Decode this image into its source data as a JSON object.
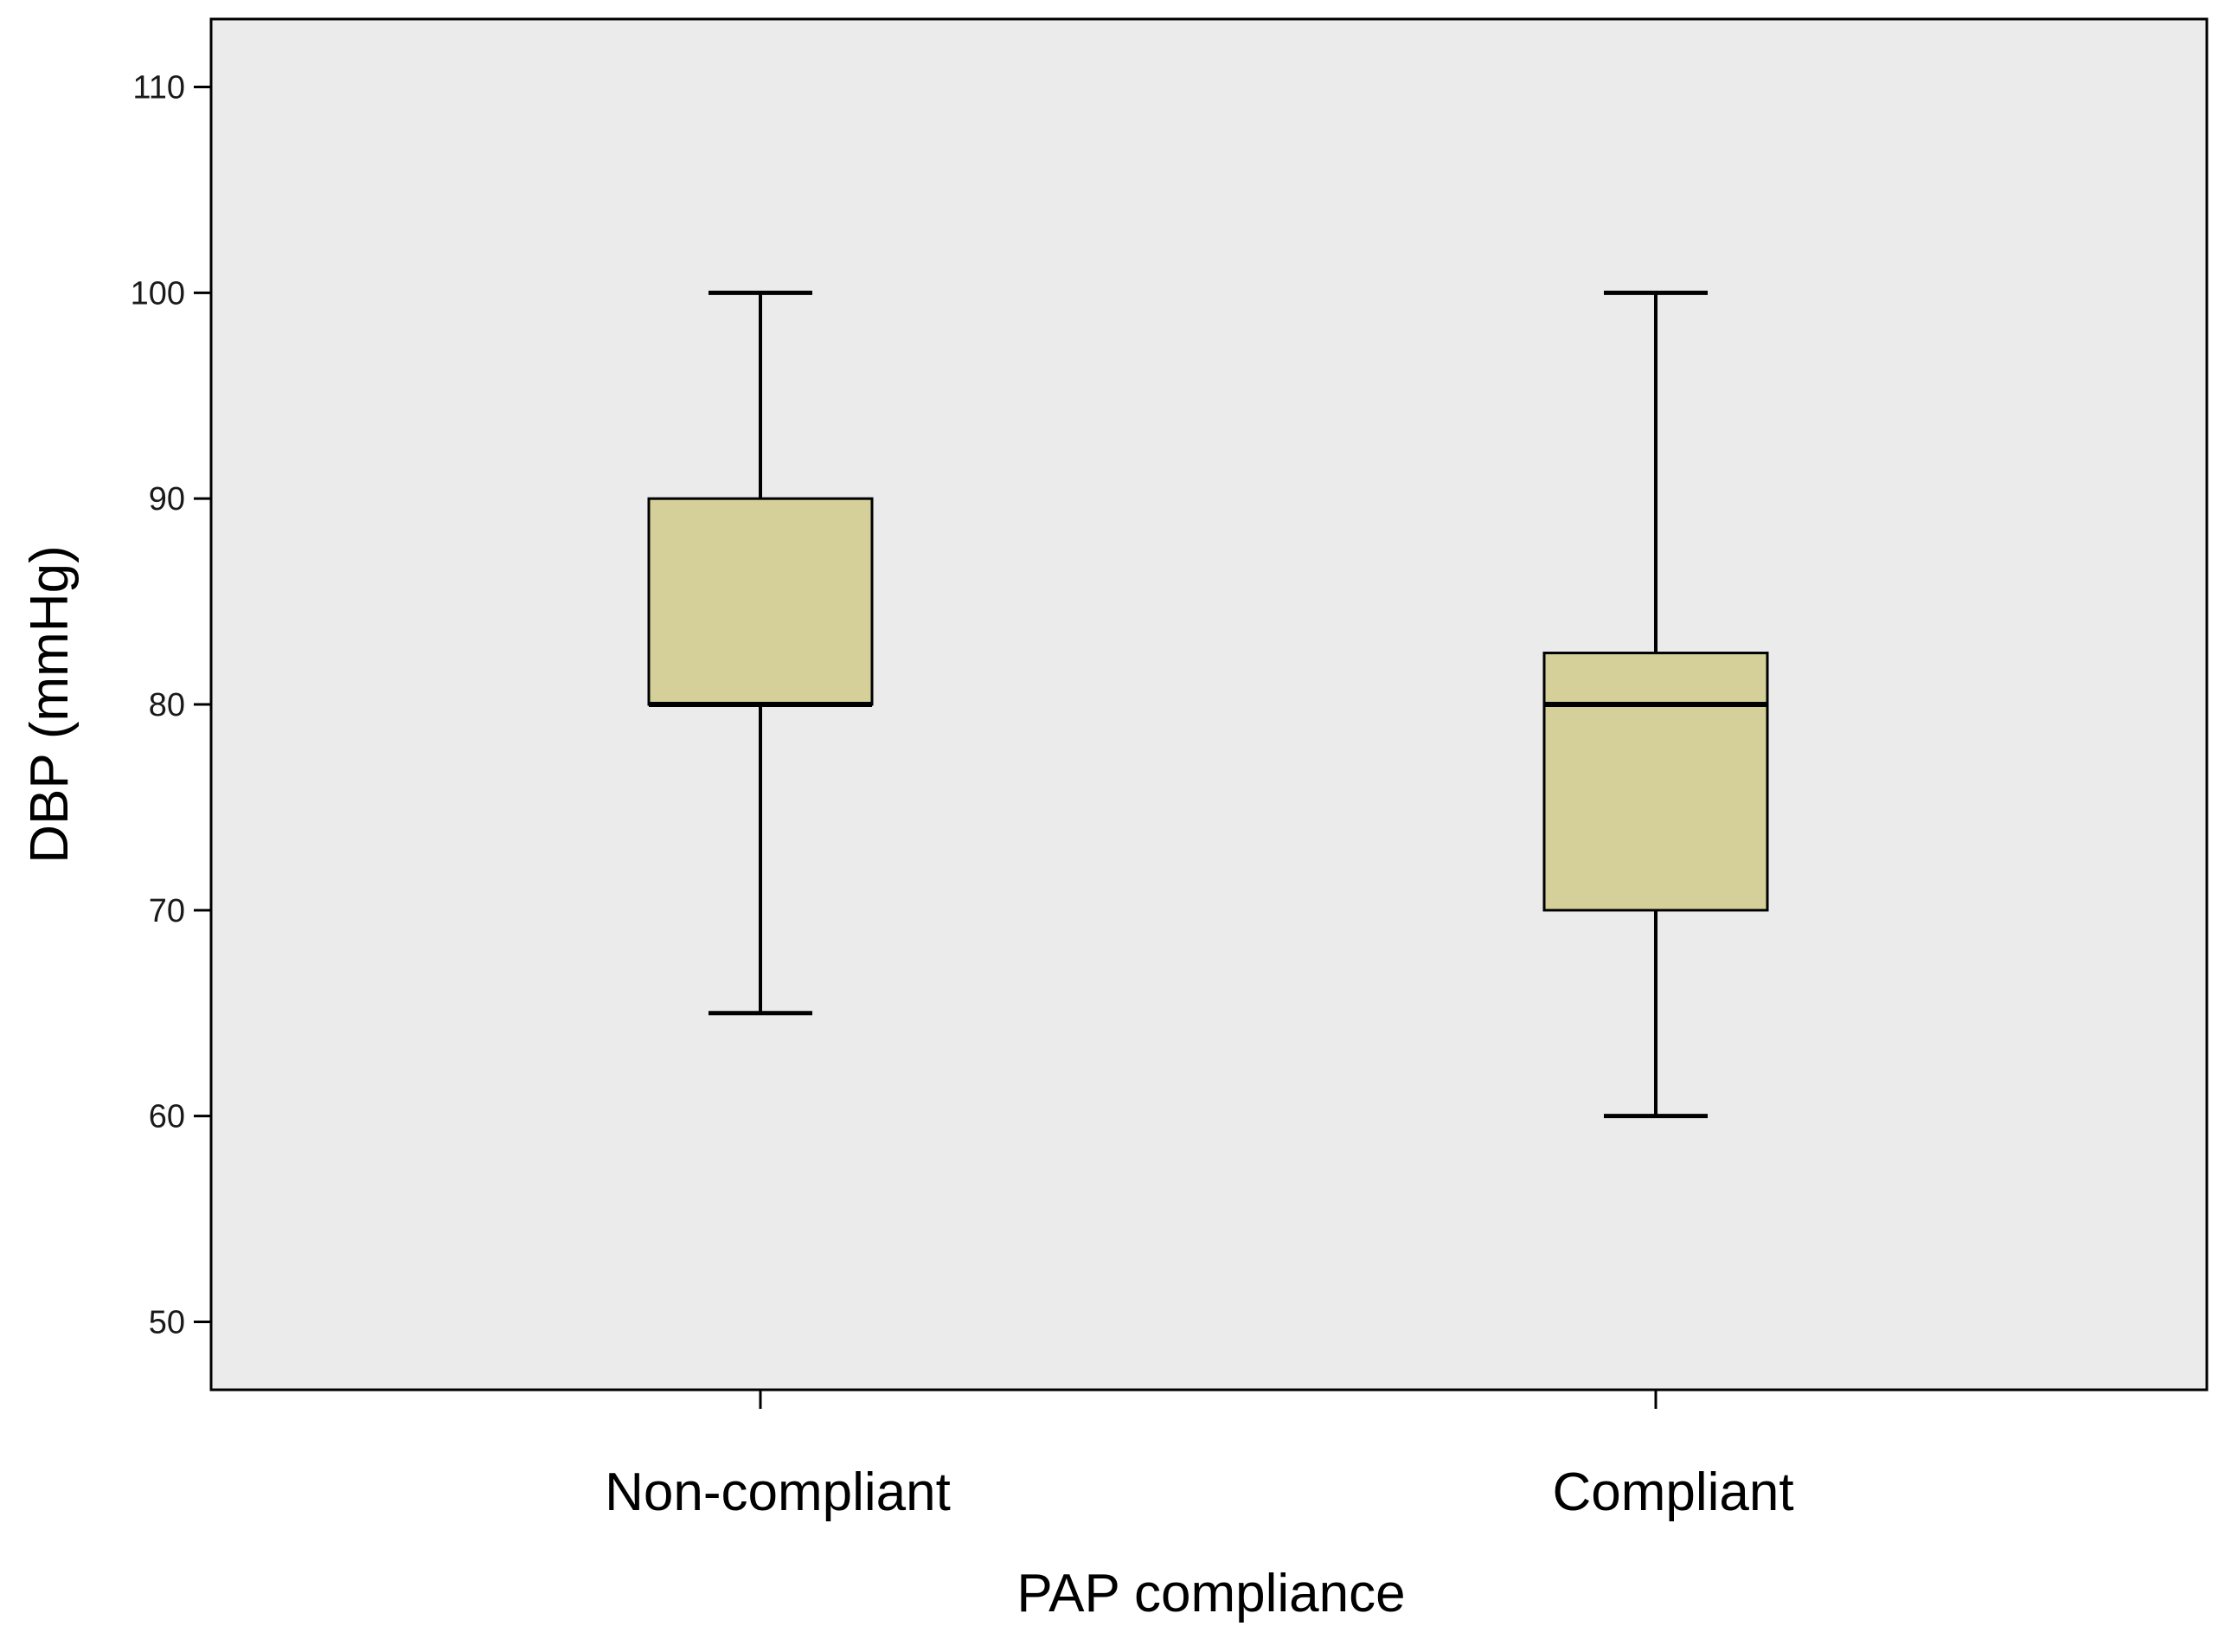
{
  "chart_data": {
    "type": "boxplot",
    "title": "",
    "xlabel": "PAP compliance",
    "ylabel": "DBP (mmHg)",
    "ylim": [
      46.7,
      113.3
    ],
    "yticks": [
      50,
      60,
      70,
      80,
      90,
      100,
      110
    ],
    "categories": [
      "Non-compliant",
      "Compliant"
    ],
    "boxes": [
      {
        "category": "Non-compliant",
        "whisker_low": 65,
        "q1": 80,
        "median": 80,
        "q3": 90,
        "whisker_high": 100
      },
      {
        "category": "Compliant",
        "whisker_low": 60,
        "q1": 70,
        "median": 80,
        "q3": 82.5,
        "whisker_high": 100
      }
    ],
    "grid": false,
    "legend": "none",
    "colors": {
      "plot_background": "#ebebeb",
      "box_fill": "#d5d09a",
      "stroke": "#000000"
    }
  }
}
